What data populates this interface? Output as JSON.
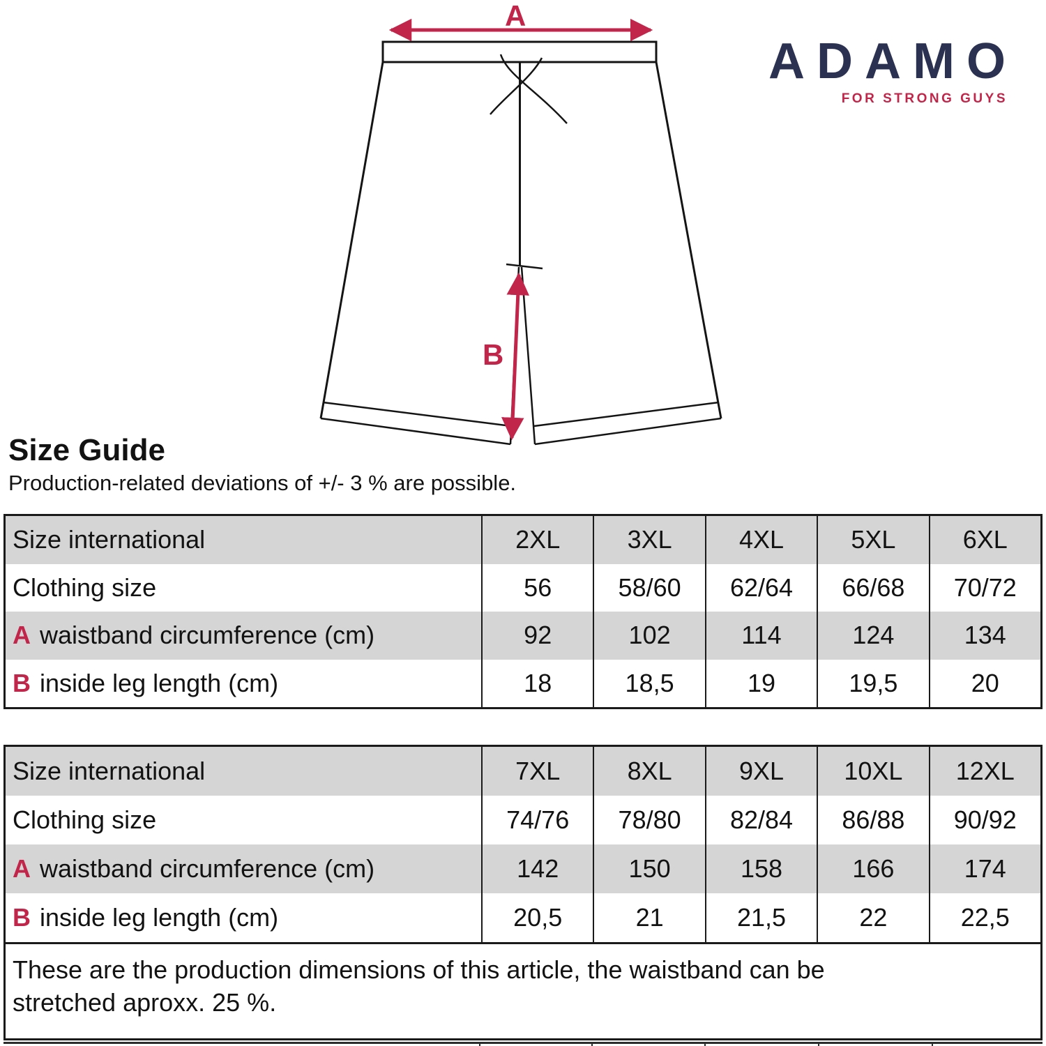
{
  "logo": {
    "brand": "ADAMO",
    "tagline": "FOR STRONG GUYS"
  },
  "heading": {
    "title": "Size Guide",
    "subtitle": "Production-related deviations of +/- 3 % are possible."
  },
  "diagram": {
    "waist_label": "A",
    "leg_label": "B"
  },
  "tables": [
    {
      "rows": [
        {
          "prefix": "",
          "label": "Size international",
          "values": [
            "2XL",
            "3XL",
            "4XL",
            "5XL",
            "6XL"
          ]
        },
        {
          "prefix": "",
          "label": "Clothing size",
          "values": [
            "56",
            "58/60",
            "62/64",
            "66/68",
            "70/72"
          ]
        },
        {
          "prefix": "A",
          "label": "waistband circumference (cm)",
          "values": [
            "92",
            "102",
            "114",
            "124",
            "134"
          ]
        },
        {
          "prefix": "B",
          "label": "inside leg length (cm)",
          "values": [
            "18",
            "18,5",
            "19",
            "19,5",
            "20"
          ]
        }
      ]
    },
    {
      "rows": [
        {
          "prefix": "",
          "label": "Size international",
          "values": [
            "7XL",
            "8XL",
            "9XL",
            "10XL",
            "12XL"
          ]
        },
        {
          "prefix": "",
          "label": "Clothing size",
          "values": [
            "74/76",
            "78/80",
            "82/84",
            "86/88",
            "90/92"
          ]
        },
        {
          "prefix": "A",
          "label": "waistband circumference (cm)",
          "values": [
            "142",
            "150",
            "158",
            "166",
            "174"
          ]
        },
        {
          "prefix": "B",
          "label": "inside leg length (cm)",
          "values": [
            "20,5",
            "21",
            "21,5",
            "22",
            "22,5"
          ]
        }
      ]
    }
  ],
  "footnote": {
    "line1": "These are the production dimensions of this article, the waistband can be",
    "line2": "stretched aproxx. 25 %."
  },
  "colors": {
    "accent_red": "#c2254a",
    "brand_navy": "#2b3150",
    "row_gray": "#d5d5d6"
  }
}
